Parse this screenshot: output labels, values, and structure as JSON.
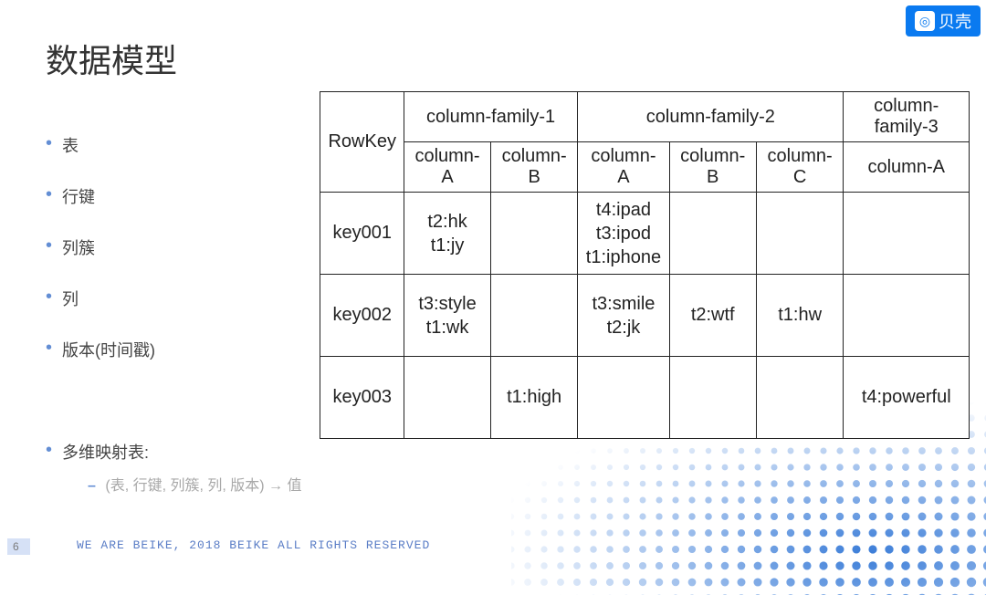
{
  "logo": {
    "text": "贝壳"
  },
  "title": "数据模型",
  "bullets": {
    "b1": "表",
    "b2": "行键",
    "b3": "列簇",
    "b4": "列",
    "b5": "版本(时间戳)",
    "b6": "多维映射表:"
  },
  "subline": "(表, 行键, 列簇, 列, 版本) → 值",
  "table": {
    "rowkey_head": "RowKey",
    "cf1": "column-family-1",
    "cf2": "column-family-2",
    "cf3": "column-family-3",
    "colA": "column-A",
    "colB": "column-B",
    "colC": "column-C",
    "rows": {
      "r1": {
        "key": "key001",
        "cf1a": "t2:hk\nt1:jy",
        "cf1b": "",
        "cf2a": "t4:ipad\nt3:ipod\nt1:iphone",
        "cf2b": "",
        "cf2c": "",
        "cf3a": ""
      },
      "r2": {
        "key": "key002",
        "cf1a": "t3:style\nt1:wk",
        "cf1b": "",
        "cf2a": "t3:smile\nt2:jk",
        "cf2b": "t2:wtf",
        "cf2c": "t1:hw",
        "cf3a": ""
      },
      "r3": {
        "key": "key003",
        "cf1a": "",
        "cf1b": "t1:high",
        "cf2a": "",
        "cf2b": "",
        "cf2c": "",
        "cf3a": "t4:powerful"
      }
    }
  },
  "footer": {
    "page_num": "6",
    "text": "WE ARE BEIKE, 2018 BEIKE ALL RIGHTS RESERVED"
  },
  "colors": {
    "brand_blue": "#0a7af0",
    "bullet_blue": "#638ED4",
    "table_border": "#222222",
    "sub_text": "#a8a8a8",
    "footer_text": "#5a7dc6",
    "page_bg": "#d6e1f6",
    "dot_color": "#3b7dd8"
  }
}
